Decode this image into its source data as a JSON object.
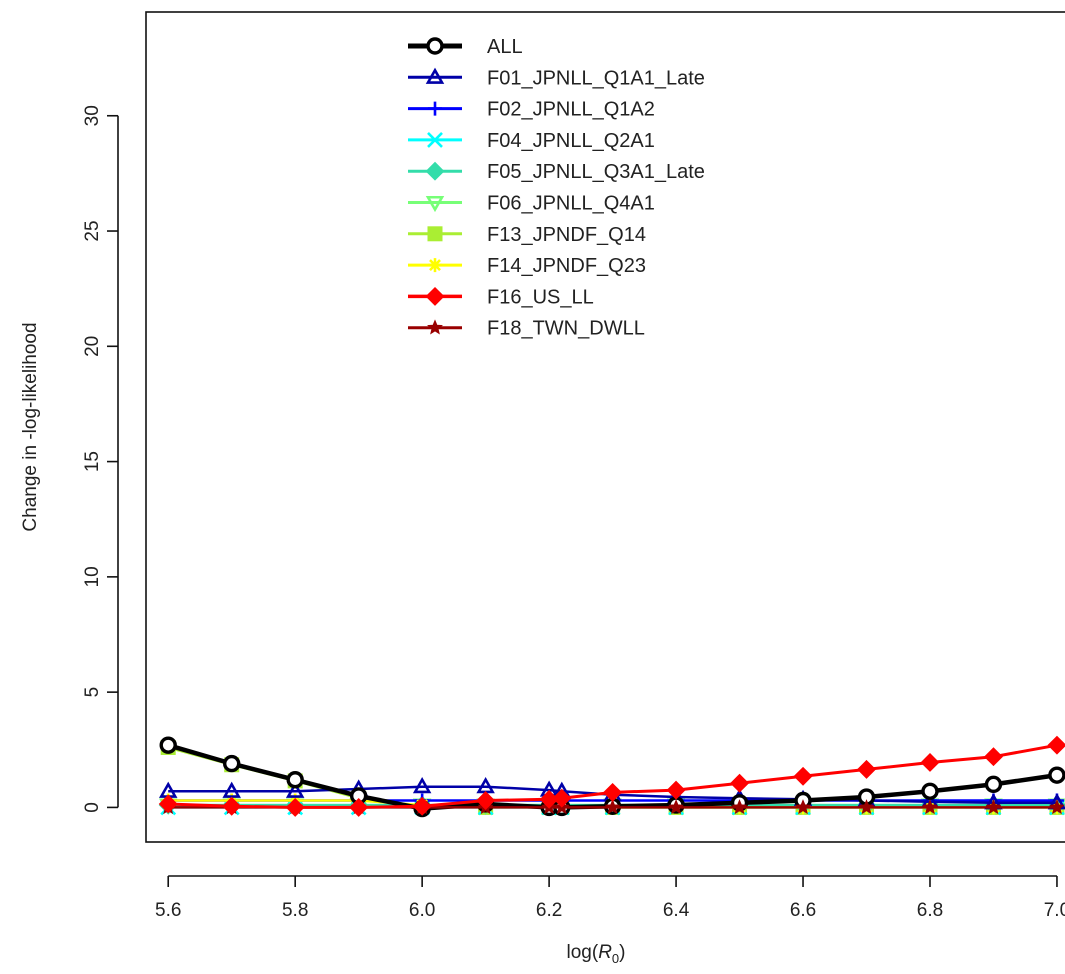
{
  "chart_data": {
    "type": "line",
    "xlabel": "log(",
    "xlabel_sym": "R",
    "xlabel_sub": "0",
    "xlabel_end": ")",
    "ylabel": "Change in -log-likelihood",
    "xlim": [
      5.565,
      7.03
    ],
    "ylim": [
      -1.5,
      34.5
    ],
    "x_ticks": [
      5.6,
      5.8,
      6.0,
      6.2,
      6.4,
      6.6,
      6.8,
      7.0
    ],
    "x_tick_labels": [
      "5.6",
      "5.8",
      "6.0",
      "6.2",
      "6.4",
      "6.6",
      "6.8",
      "7.0"
    ],
    "y_ticks": [
      0,
      5,
      10,
      15,
      20,
      25,
      30
    ],
    "y_tick_labels": [
      "0",
      "5",
      "10",
      "15",
      "20",
      "25",
      "30"
    ],
    "grid": false,
    "legend_position": "top",
    "x": [
      5.6,
      5.7,
      5.8,
      5.9,
      6.0,
      6.1,
      6.2,
      6.22,
      6.3,
      6.4,
      6.5,
      6.6,
      6.7,
      6.8,
      6.9,
      7.0
    ],
    "series": [
      {
        "name": "ALL",
        "color": "#000000",
        "marker": "circle",
        "lw": 4.5,
        "values": [
          2.7,
          1.9,
          1.2,
          0.5,
          -0.05,
          0.15,
          0.0,
          0.0,
          0.05,
          0.1,
          0.2,
          0.3,
          0.45,
          0.7,
          1.0,
          1.4
        ]
      },
      {
        "name": "F01_JPNLL_Q1A1_Late",
        "color": "#0000a8",
        "marker": "triangle",
        "lw": 2.5,
        "values": [
          0.7,
          0.7,
          0.7,
          0.8,
          0.9,
          0.9,
          0.75,
          0.7,
          0.55,
          0.45,
          0.4,
          0.35,
          0.3,
          0.25,
          0.2,
          0.2
        ]
      },
      {
        "name": "F02_JPNLL_Q1A2",
        "color": "#0000ff",
        "marker": "plus",
        "lw": 2.5,
        "values": [
          0.3,
          0.3,
          0.3,
          0.3,
          0.3,
          0.3,
          0.3,
          0.3,
          0.3,
          0.3,
          0.3,
          0.3,
          0.3,
          0.3,
          0.3,
          0.3
        ]
      },
      {
        "name": "F04_JPNLL_Q2A1",
        "color": "#00ffff",
        "marker": "cross",
        "lw": 2.5,
        "values": [
          0.0,
          0.0,
          0.0,
          0.0,
          0.0,
          0.0,
          0.0,
          0.0,
          0.0,
          0.0,
          0.0,
          0.0,
          0.0,
          0.0,
          0.0,
          0.0
        ]
      },
      {
        "name": "F05_JPNLL_Q3A1_Late",
        "color": "#33ddaa",
        "marker": "diamond",
        "lw": 2.5,
        "values": [
          0.1,
          0.1,
          0.1,
          0.1,
          0.1,
          0.1,
          0.1,
          0.1,
          0.1,
          0.1,
          0.1,
          0.1,
          0.1,
          0.1,
          0.1,
          0.1
        ]
      },
      {
        "name": "F06_JPNLL_Q4A1",
        "color": "#77ff77",
        "marker": "triangle-down",
        "lw": 2.5,
        "values": [
          0.1,
          0.1,
          0.1,
          0.1,
          0.1,
          0.1,
          0.1,
          0.1,
          0.1,
          0.1,
          0.1,
          0.1,
          0.1,
          0.1,
          0.1,
          0.1
        ]
      },
      {
        "name": "F13_JPNDF_Q14",
        "color": "#aaee33",
        "marker": "square",
        "lw": 2.5,
        "values": [
          2.6,
          1.85,
          1.15,
          0.4,
          0.05,
          0.0,
          0.0,
          0.0,
          0.0,
          0.0,
          0.0,
          0.0,
          0.0,
          0.0,
          0.0,
          0.0
        ]
      },
      {
        "name": "F14_JPNDF_Q23",
        "color": "#ffff00",
        "marker": "asterisk",
        "lw": 2.5,
        "values": [
          0.3,
          0.3,
          0.3,
          0.3,
          0.1,
          0.05,
          0.05,
          0.05,
          0.0,
          0.0,
          0.0,
          0.0,
          0.0,
          0.0,
          0.0,
          0.0
        ]
      },
      {
        "name": "F16_US_LL",
        "color": "#ff0000",
        "marker": "diamond",
        "lw": 3,
        "values": [
          0.15,
          0.05,
          0.0,
          0.0,
          0.05,
          0.3,
          0.35,
          0.4,
          0.65,
          0.75,
          1.05,
          1.35,
          1.65,
          1.95,
          2.2,
          2.7
        ]
      },
      {
        "name": "F18_TWN_DWLL",
        "color": "#990000",
        "marker": "star",
        "lw": 2.5,
        "values": [
          0.0,
          0.0,
          0.0,
          0.0,
          0.0,
          0.0,
          0.0,
          0.0,
          0.0,
          0.0,
          0.0,
          0.0,
          0.0,
          0.0,
          0.0,
          0.0
        ]
      }
    ]
  }
}
